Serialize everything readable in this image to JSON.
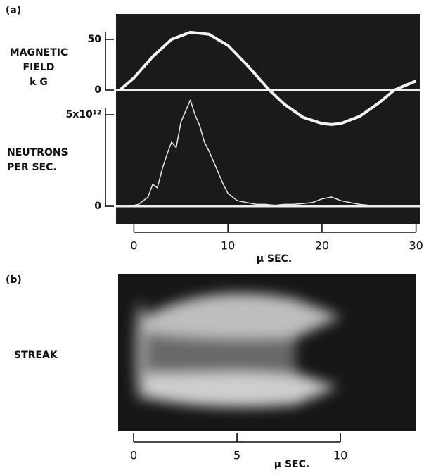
{
  "chart_data": [
    {
      "type": "line",
      "label": "(a)",
      "ylabel_lines": [
        "MAGNETIC",
        "FIELD",
        "k G"
      ],
      "color": "#f4f4f4",
      "xlim": [
        -1.9,
        30.4
      ],
      "ylim": [
        -132,
        75
      ],
      "yticks": [
        0,
        50
      ],
      "x": [
        -1.5,
        0,
        2,
        4,
        6,
        8,
        10,
        12,
        14.4,
        16,
        18,
        20,
        21,
        22,
        24,
        26,
        27.7,
        30
      ],
      "values": [
        0,
        12,
        33,
        50,
        57,
        55,
        44,
        25,
        0,
        -14,
        -27,
        -33,
        -34,
        -33,
        -26,
        -13,
        0,
        9
      ]
    },
    {
      "type": "line",
      "ylabel_lines": [
        "NEUTRONS",
        "PER SEC."
      ],
      "color": "#e8e8e8",
      "xlim": [
        -1.9,
        30.4
      ],
      "ylim": [
        -960000000000.0,
        10500000000000.0
      ],
      "yticks": [
        0,
        {
          "value": 5000000000000.0,
          "label": "5x10¹²"
        }
      ],
      "xticks": [
        0,
        10,
        20,
        30
      ],
      "xlabel": "μ SEC.",
      "x": [
        -1.5,
        0,
        0.5,
        1,
        1.5,
        2,
        2.5,
        3,
        3.5,
        4,
        4.5,
        5,
        5.5,
        6,
        6.5,
        7,
        7.5,
        8,
        8.5,
        9,
        9.5,
        10,
        11,
        12,
        13,
        14,
        15,
        16,
        17,
        18,
        19,
        20,
        21,
        22,
        23,
        24,
        25,
        26,
        27,
        28,
        29,
        30
      ],
      "values": [
        0,
        50000000000.0,
        100000000000.0,
        300000000000.0,
        500000000000.0,
        1200000000000.0,
        1000000000000.0,
        2000000000000.0,
        2800000000000.0,
        3500000000000.0,
        3200000000000.0,
        4600000000000.0,
        5200000000000.0,
        5800000000000.0,
        5000000000000.0,
        4400000000000.0,
        3500000000000.0,
        3000000000000.0,
        2400000000000.0,
        1800000000000.0,
        1200000000000.0,
        700000000000.0,
        300000000000.0,
        200000000000.0,
        100000000000.0,
        100000000000.0,
        50000000000.0,
        100000000000.0,
        100000000000.0,
        150000000000.0,
        200000000000.0,
        400000000000.0,
        500000000000.0,
        300000000000.0,
        200000000000.0,
        100000000000.0,
        50000000000.0,
        50000000000.0,
        30000000000.0,
        30000000000.0,
        20000000000.0,
        20000000000.0
      ]
    },
    {
      "type": "image",
      "label": "(b)",
      "ylabel_lines": [
        "STREAK"
      ],
      "xlim": [
        -0.75,
        13.67
      ],
      "xticks": [
        0,
        5,
        10
      ],
      "xlabel": "μ SEC."
    }
  ]
}
